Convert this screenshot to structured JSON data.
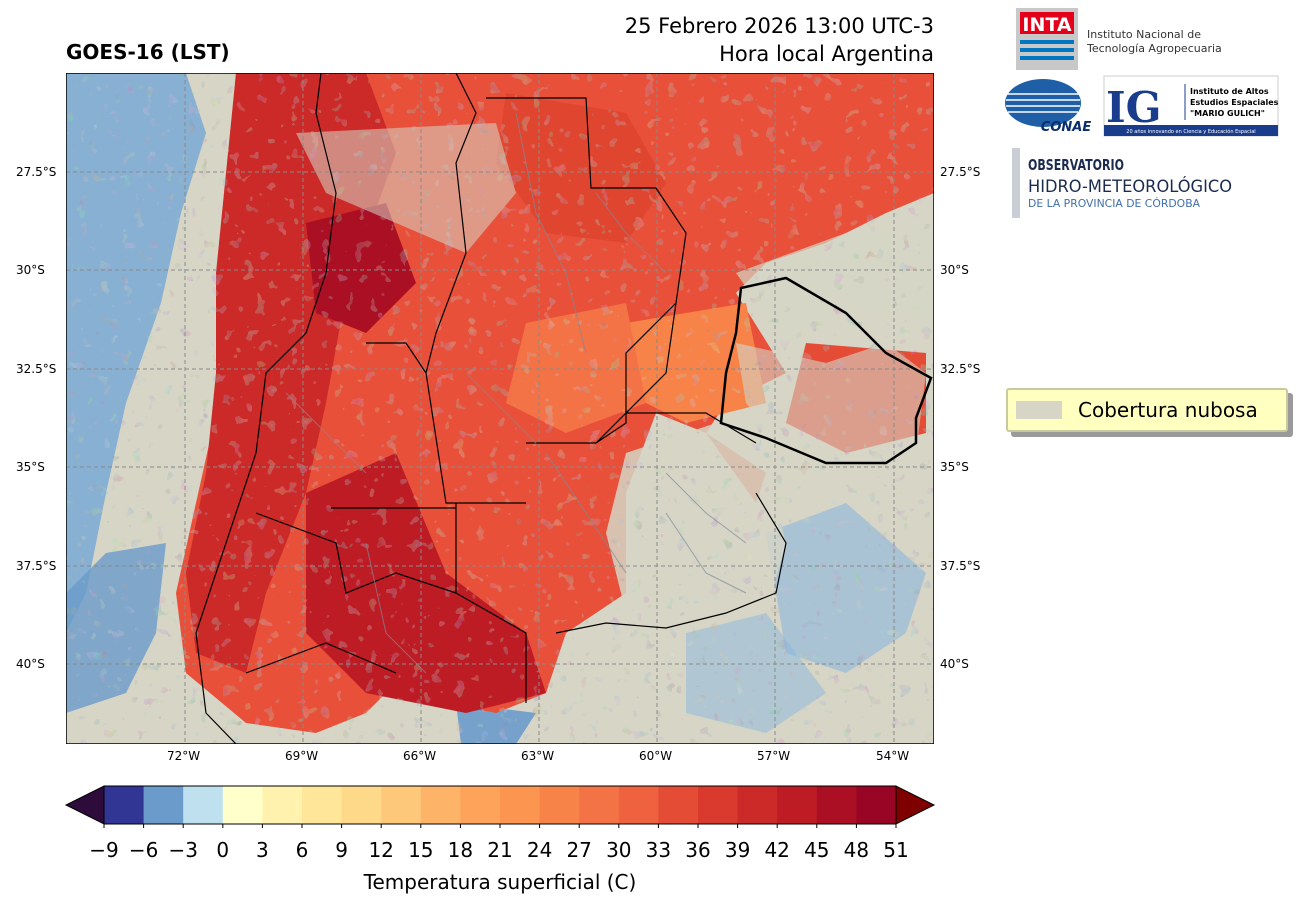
{
  "header": {
    "title": "GOES-16 (LST)",
    "date_line": "25 Febrero 2026 13:00 UTC-3",
    "local_line": "Hora local Argentina"
  },
  "map": {
    "lat_labels": [
      "27.5°S",
      "30°S",
      "32.5°S",
      "35°S",
      "37.5°S",
      "40°S"
    ],
    "lon_labels": [
      "72°W",
      "69°W",
      "66°W",
      "63°W",
      "60°W",
      "57°W",
      "54°W"
    ]
  },
  "logos": {
    "inta_mark": "INTA",
    "inta_name_1": "Instituto Nacional de",
    "inta_name_2": "Tecnología Agropecuaria",
    "conae": "CONAE",
    "ig_mark": "IG",
    "ig_name_1": "Instituto de Altos",
    "ig_name_2": "Estudios Espaciales",
    "ig_name_3": "\"MARIO GULICH\"",
    "ig_tagline": "20 años innovando en Ciencia y Educación Espacial",
    "obs_1": "OBSERVATORIO",
    "obs_2": "HIDRO-METEOROLÓGICO",
    "obs_3": "DE LA PROVINCIA DE CÓRDOBA"
  },
  "legend": {
    "cloud_label": "Cobertura nubosa",
    "cloud_color": "#d6d5c6"
  },
  "colorbar": {
    "label": "Temperatura superficial (C)",
    "ticks": [
      "−9",
      "−6",
      "−3",
      "0",
      "3",
      "6",
      "9",
      "12",
      "15",
      "18",
      "21",
      "24",
      "27",
      "30",
      "33",
      "36",
      "39",
      "42",
      "45",
      "48",
      "51"
    ],
    "under_color": "#2d0b3b",
    "over_color": "#7f0000",
    "colors": [
      "#313695",
      "#6a9bcb",
      "#bfe1ef",
      "#ffffcc",
      "#fff2ae",
      "#ffe699",
      "#fed98a",
      "#fec87a",
      "#feb468",
      "#fda35a",
      "#fc9550",
      "#f88349",
      "#f47346",
      "#ee6240",
      "#e54c36",
      "#da3a2e",
      "#cc2a28",
      "#bd1c25",
      "#aa0f24",
      "#980525"
    ]
  }
}
